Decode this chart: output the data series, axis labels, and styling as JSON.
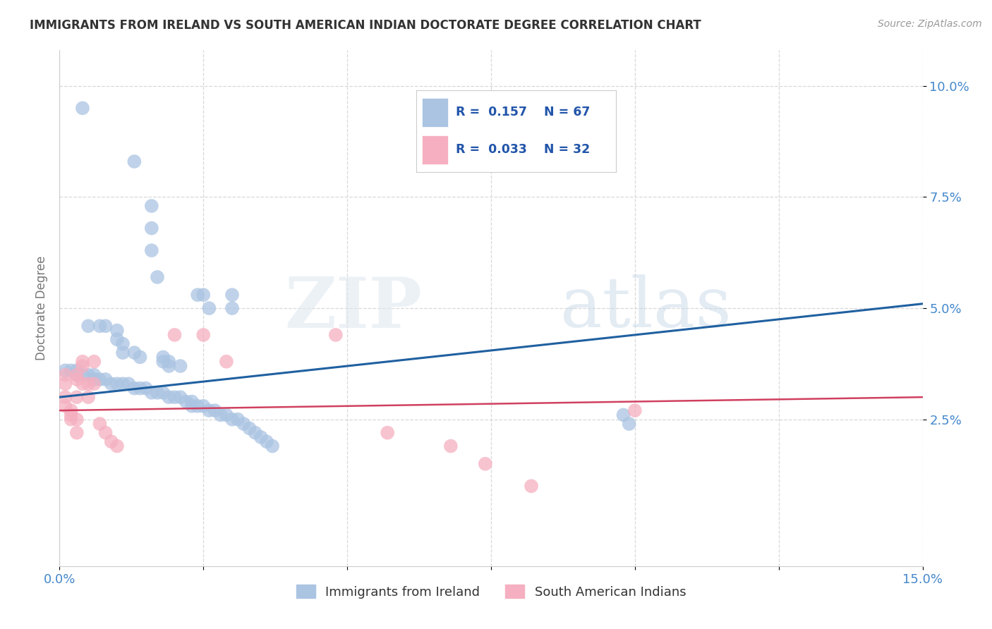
{
  "title": "IMMIGRANTS FROM IRELAND VS SOUTH AMERICAN INDIAN DOCTORATE DEGREE CORRELATION CHART",
  "source": "Source: ZipAtlas.com",
  "ylabel": "Doctorate Degree",
  "xlim": [
    0.0,
    0.15
  ],
  "ylim": [
    -0.008,
    0.108
  ],
  "xticks": [
    0.0,
    0.025,
    0.05,
    0.075,
    0.1,
    0.125,
    0.15
  ],
  "xticklabels": [
    "0.0%",
    "",
    "",
    "",
    "",
    "",
    "15.0%"
  ],
  "ytick_positions": [
    0.025,
    0.05,
    0.075,
    0.1
  ],
  "ytick_labels": [
    "2.5%",
    "5.0%",
    "7.5%",
    "10.0%"
  ],
  "blue_R": "0.157",
  "blue_N": "67",
  "pink_R": "0.033",
  "pink_N": "32",
  "blue_color": "#aac4e2",
  "pink_color": "#f5afc0",
  "blue_line_color": "#2060a0",
  "pink_line_color": "#d04060",
  "watermark_zip": "ZIP",
  "watermark_atlas": "atlas",
  "blue_scatter": [
    [
      0.004,
      0.095
    ],
    [
      0.013,
      0.083
    ],
    [
      0.016,
      0.073
    ],
    [
      0.016,
      0.068
    ],
    [
      0.016,
      0.063
    ],
    [
      0.017,
      0.057
    ],
    [
      0.024,
      0.053
    ],
    [
      0.025,
      0.053
    ],
    [
      0.026,
      0.05
    ],
    [
      0.03,
      0.053
    ],
    [
      0.03,
      0.05
    ],
    [
      0.005,
      0.046
    ],
    [
      0.007,
      0.046
    ],
    [
      0.008,
      0.046
    ],
    [
      0.01,
      0.045
    ],
    [
      0.01,
      0.043
    ],
    [
      0.011,
      0.042
    ],
    [
      0.011,
      0.04
    ],
    [
      0.013,
      0.04
    ],
    [
      0.014,
      0.039
    ],
    [
      0.018,
      0.039
    ],
    [
      0.018,
      0.038
    ],
    [
      0.019,
      0.038
    ],
    [
      0.019,
      0.037
    ],
    [
      0.021,
      0.037
    ],
    [
      0.001,
      0.036
    ],
    [
      0.002,
      0.036
    ],
    [
      0.003,
      0.036
    ],
    [
      0.003,
      0.035
    ],
    [
      0.004,
      0.035
    ],
    [
      0.005,
      0.035
    ],
    [
      0.006,
      0.035
    ],
    [
      0.006,
      0.034
    ],
    [
      0.007,
      0.034
    ],
    [
      0.008,
      0.034
    ],
    [
      0.009,
      0.033
    ],
    [
      0.01,
      0.033
    ],
    [
      0.011,
      0.033
    ],
    [
      0.012,
      0.033
    ],
    [
      0.013,
      0.032
    ],
    [
      0.014,
      0.032
    ],
    [
      0.015,
      0.032
    ],
    [
      0.016,
      0.031
    ],
    [
      0.017,
      0.031
    ],
    [
      0.018,
      0.031
    ],
    [
      0.019,
      0.03
    ],
    [
      0.02,
      0.03
    ],
    [
      0.021,
      0.03
    ],
    [
      0.022,
      0.029
    ],
    [
      0.023,
      0.029
    ],
    [
      0.023,
      0.028
    ],
    [
      0.024,
      0.028
    ],
    [
      0.025,
      0.028
    ],
    [
      0.026,
      0.027
    ],
    [
      0.027,
      0.027
    ],
    [
      0.028,
      0.026
    ],
    [
      0.029,
      0.026
    ],
    [
      0.03,
      0.025
    ],
    [
      0.031,
      0.025
    ],
    [
      0.032,
      0.024
    ],
    [
      0.033,
      0.023
    ],
    [
      0.034,
      0.022
    ],
    [
      0.035,
      0.021
    ],
    [
      0.036,
      0.02
    ],
    [
      0.037,
      0.019
    ],
    [
      0.098,
      0.026
    ],
    [
      0.099,
      0.024
    ]
  ],
  "pink_scatter": [
    [
      0.001,
      0.035
    ],
    [
      0.001,
      0.033
    ],
    [
      0.001,
      0.03
    ],
    [
      0.001,
      0.028
    ],
    [
      0.002,
      0.027
    ],
    [
      0.002,
      0.026
    ],
    [
      0.002,
      0.025
    ],
    [
      0.003,
      0.035
    ],
    [
      0.003,
      0.034
    ],
    [
      0.003,
      0.03
    ],
    [
      0.003,
      0.025
    ],
    [
      0.003,
      0.022
    ],
    [
      0.004,
      0.038
    ],
    [
      0.004,
      0.037
    ],
    [
      0.004,
      0.033
    ],
    [
      0.005,
      0.033
    ],
    [
      0.005,
      0.03
    ],
    [
      0.006,
      0.038
    ],
    [
      0.006,
      0.033
    ],
    [
      0.007,
      0.024
    ],
    [
      0.008,
      0.022
    ],
    [
      0.009,
      0.02
    ],
    [
      0.01,
      0.019
    ],
    [
      0.02,
      0.044
    ],
    [
      0.025,
      0.044
    ],
    [
      0.029,
      0.038
    ],
    [
      0.048,
      0.044
    ],
    [
      0.057,
      0.022
    ],
    [
      0.068,
      0.019
    ],
    [
      0.074,
      0.015
    ],
    [
      0.082,
      0.01
    ],
    [
      0.1,
      0.027
    ]
  ],
  "blue_trend_x": [
    0.0,
    0.15
  ],
  "blue_trend_y": [
    0.03,
    0.051
  ],
  "pink_trend_x": [
    0.0,
    0.15
  ],
  "pink_trend_y": [
    0.027,
    0.03
  ],
  "background_color": "#ffffff",
  "grid_color": "#d8d8d8",
  "title_color": "#333333",
  "right_tick_color": "#4488cc",
  "bottom_tick_color": "#4488cc",
  "legend_text_color": "#2255aa"
}
